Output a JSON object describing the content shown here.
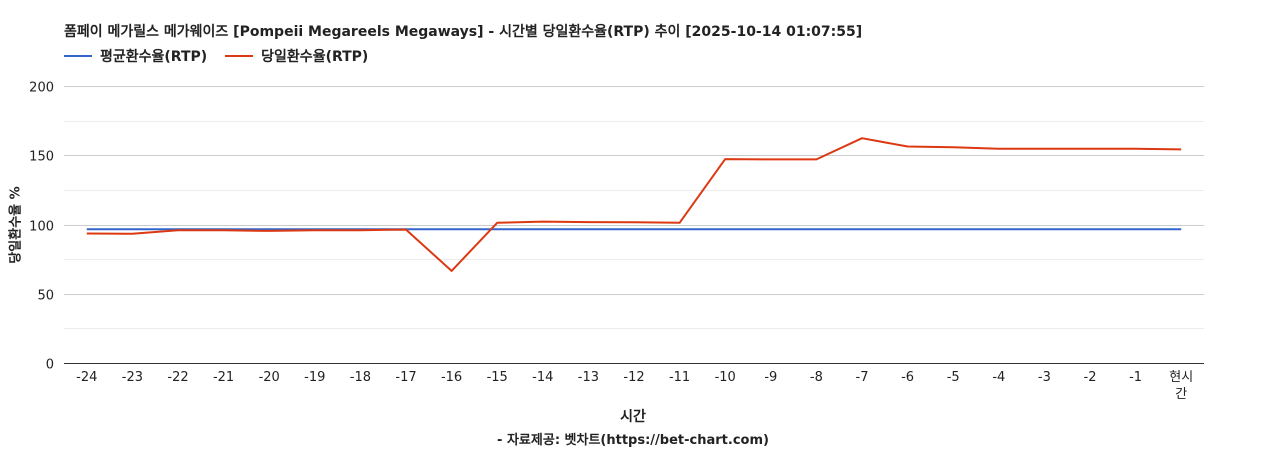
{
  "chart_data": {
    "type": "line",
    "title": "폼페이 메가릴스 메가웨이즈 [Pompeii Megareels Megaways] - 시간별 당일환수율(RTP) 추이 [2025-10-14 01:07:55]",
    "xlabel": "시간",
    "ylabel": "당일환수율 %",
    "source": "- 자료제공: 벳차트(https://bet-chart.com)",
    "categories": [
      "-24",
      "-23",
      "-22",
      "-21",
      "-20",
      "-19",
      "-18",
      "-17",
      "-16",
      "-15",
      "-14",
      "-13",
      "-12",
      "-11",
      "-10",
      "-9",
      "-8",
      "-7",
      "-6",
      "-5",
      "-4",
      "-3",
      "-2",
      "-1",
      "현시간"
    ],
    "series": [
      {
        "name": "평균환수율(RTP)",
        "color": "#3366cc",
        "values": [
          96.5,
          96.5,
          96.5,
          96.5,
          96.5,
          96.5,
          96.5,
          96.5,
          96.5,
          96.5,
          96.5,
          96.5,
          96.5,
          96.5,
          96.5,
          96.5,
          96.5,
          96.5,
          96.5,
          96.5,
          96.5,
          96.5,
          96.5,
          96.5,
          96.5
        ]
      },
      {
        "name": "당일환수율(RTP)",
        "color": "#dc3912",
        "values": [
          93.5,
          93.3,
          95.8,
          95.8,
          95.4,
          95.8,
          95.9,
          96.3,
          66.5,
          101.2,
          102.1,
          101.7,
          101.6,
          101.2,
          147.2,
          147.0,
          147.0,
          162.3,
          156.3,
          155.8,
          154.7,
          154.7,
          154.7,
          154.7,
          154.2
        ]
      }
    ],
    "ylim": [
      0,
      200
    ],
    "yticks": [
      0,
      50,
      100,
      150,
      200
    ],
    "grid": true,
    "legend_position": "top-left"
  }
}
